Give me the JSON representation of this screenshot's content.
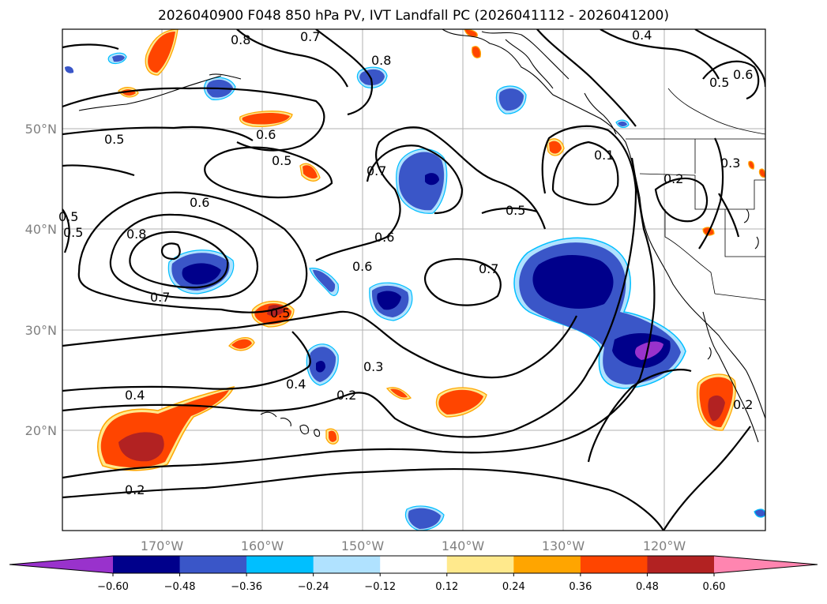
{
  "title": "2026040900 F048 850 hPa PV, IVT Landfall PC (2026041112 - 2026041200)",
  "map": {
    "lon_labels": [
      "170°W",
      "160°W",
      "150°W",
      "140°W",
      "130°W",
      "120°W"
    ],
    "lat_labels": [
      "50°N",
      "40°N",
      "30°N",
      "20°N"
    ],
    "contour_labels": [
      "0.8",
      "0.7",
      "0.8",
      "0.4",
      "0.5",
      "0.6",
      "0.5",
      "0.6",
      "0.5",
      "0.5",
      "0.7",
      "0.6",
      "0.5",
      "0.8",
      "0.6",
      "0.5",
      "0.7",
      "0.6",
      "0.7",
      "0.1",
      "0.2",
      "0.3",
      "0.5",
      "0.4",
      "0.2",
      "0.3",
      "0.4",
      "0.2",
      "0.2"
    ]
  },
  "colorbar": {
    "ticks": [
      "−0.60",
      "−0.48",
      "−0.36",
      "−0.24",
      "−0.12",
      "0.12",
      "0.24",
      "0.36",
      "0.48",
      "0.60"
    ],
    "colors": [
      "#9932cc",
      "#00008b",
      "#3a56c8",
      "#00bfff",
      "#b0e2ff",
      "#ffffff",
      "#ffe98c",
      "#ffa500",
      "#ff4500",
      "#b22222",
      "#ff85b0"
    ]
  }
}
